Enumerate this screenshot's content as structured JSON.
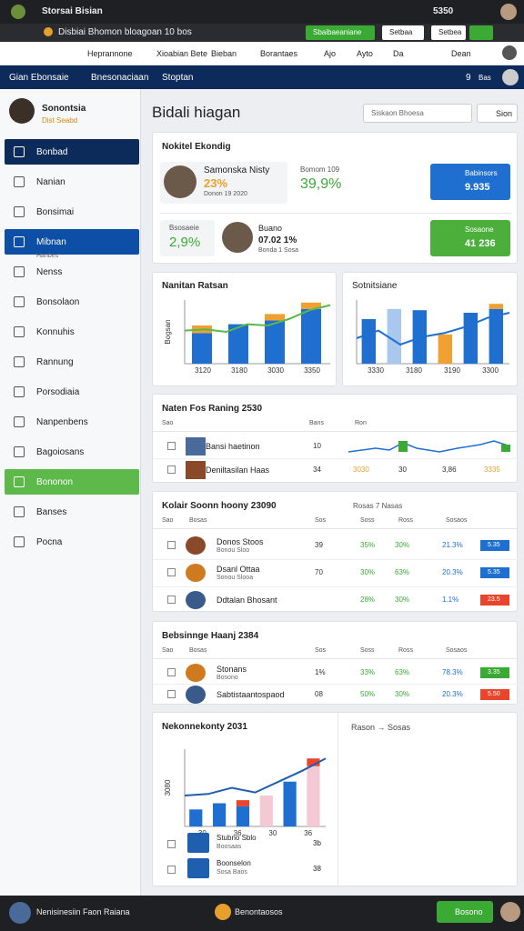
{
  "browser": {
    "tab": "Storsai Bisian",
    "url": "Disbiai Bhomon bloagoan 10 bos",
    "counter": "5350",
    "actions": [
      "Sbaibaeaniane",
      "Setbaa",
      "Setbea"
    ]
  },
  "bookmarks": [
    "Heprannone",
    "Xioabian Bete",
    "Bieban",
    "Borantaes",
    "Ajo",
    "Ayto",
    "Da",
    "Dean"
  ],
  "app": {
    "name": "Gian Ebonsaie",
    "nav": [
      "Bnesonaciaan",
      "Stoptan"
    ],
    "count": "9",
    "user": "Bas"
  },
  "profile": {
    "name": "Sonontsia",
    "role": "Dist Seabd"
  },
  "sidebar": [
    "Bonbad",
    "Nanian",
    "Bonsimai",
    "Mibnan",
    "Nenss",
    "Bonsolaon",
    "Konnuhis",
    "Rannung",
    "Porsodiaia",
    "Nanpenbens",
    "Bagoiosans",
    "Bononon",
    "Banses",
    "Pocna"
  ],
  "sidebar_sub": "Hanbes",
  "page": {
    "title": "Bidali hiagan",
    "search": "Siskaon Bhoesa",
    "search_button": "Sion"
  },
  "summary": {
    "title": "Nokitel Ekondig",
    "person1": {
      "name": "Samonska Nisty",
      "value": "23%",
      "note": "Donon 19 2020"
    },
    "metric1": {
      "label": "Bomom 109",
      "value": "39,9%"
    },
    "tile1": {
      "label": "Babinsors",
      "value": "9.935"
    },
    "metric2": {
      "label": "Bsosaeie",
      "value": "2,9%"
    },
    "person2": {
      "name": "Buano",
      "value": "07.02 1%",
      "note": "Bonda 1 Sosa"
    },
    "tile2": {
      "label": "Sosaone",
      "value": "41 236"
    }
  },
  "charts": [
    {
      "title": "Nanitan Ratsan",
      "ylabel": "Bogsan",
      "xticks": [
        "3120",
        "3180",
        "3030",
        "3350"
      ],
      "ylim": [
        0,
        100
      ],
      "bars": [
        48,
        62,
        68,
        86
      ],
      "bar_colors": [
        "#1e6fd0",
        "#1e6fd0",
        "#1e6fd0",
        "#1e6fd0"
      ],
      "caps": [
        12,
        null,
        10,
        10
      ],
      "cap_color": "#f0a030",
      "line": [
        52,
        54,
        50,
        62,
        60,
        70,
        84,
        92
      ],
      "line_color": "#58b84a"
    },
    {
      "title": "Sotnitsiane",
      "xticks": [
        "3330",
        "3180",
        "3190",
        "3300"
      ],
      "ylim": [
        0,
        100
      ],
      "bars": [
        70,
        86,
        84,
        46,
        80,
        86
      ],
      "bar_colors": [
        "#1e6fd0",
        "#a8c8ee",
        "#1e6fd0",
        "#f0a030",
        "#1e6fd0",
        "#1e6fd0"
      ],
      "caps": [
        null,
        null,
        null,
        null,
        null,
        8
      ],
      "cap_color": "#f0a030",
      "line": [
        40,
        52,
        30,
        42,
        48,
        58,
        72,
        80
      ],
      "line_color": "#1e6fd0"
    },
    {
      "title": "Nekonnekonty 2031",
      "ylabel": "3080",
      "xticks": [
        "30",
        "36",
        "30",
        "36"
      ],
      "ylim": [
        0,
        100
      ],
      "bars": [
        22,
        30,
        26,
        40,
        58,
        78
      ],
      "bar_colors": [
        "#1e6fd0",
        "#1e6fd0",
        "#1e6fd0",
        "#f3c9d3",
        "#1e6fd0",
        "#f3c9d3"
      ],
      "caps": [
        null,
        null,
        8,
        null,
        null,
        10
      ],
      "cap_color": "#e8452c",
      "line": [
        40,
        42,
        50,
        44,
        58,
        72,
        88
      ],
      "line_color": "#1e5fb0"
    }
  ],
  "tables": [
    {
      "title": "Naten Fos Raning 2530",
      "columns": [
        "Sao",
        "Bans",
        "Ron"
      ],
      "rows": [
        {
          "name": "Bansi haetinon",
          "n": "10"
        },
        {
          "name": "Deniltasilan Haas",
          "n": "34",
          "a": "3030",
          "b": "30",
          "c": "3,86",
          "badge": "3335"
        }
      ]
    },
    {
      "title": "Kolair Soonn hoony 23090",
      "filter": "Rosas 7 Nasas",
      "columns": [
        "Sao",
        "Bosas",
        "Sos",
        "Soss",
        "Ross",
        "Sosaos"
      ],
      "rows": [
        {
          "name": "Donos Stoos",
          "sub": "Bonou Sloo",
          "n": "39",
          "a": "35%",
          "b": "30%",
          "c": "21.3%",
          "badge": "5.35",
          "badge_color": "#1e6fd0"
        },
        {
          "name": "Dsanl Ottaa",
          "sub": "Sonou Slooa",
          "n": "70",
          "a": "30%",
          "b": "63%",
          "c": "20.3%",
          "badge": "5.35",
          "badge_color": "#1e6fd0"
        },
        {
          "name": "Ddtalan Bhosant",
          "a": "28%",
          "b": "30%",
          "c": "1.1%",
          "badge": "23.5",
          "badge_color": "#e8452c"
        }
      ]
    },
    {
      "title": "Bebsinnge Haanj 2384",
      "columns": [
        "Sao",
        "Bosas",
        "Sos",
        "Soss",
        "Ross",
        "Sosaos"
      ],
      "rows": [
        {
          "name": "Stonans",
          "sub": "Bosono",
          "n": "1%",
          "a": "33%",
          "b": "63%",
          "c": "78.3%",
          "badge": "3.35",
          "badge_color": "#3aaa35"
        },
        {
          "name": "Sabtistaantospaod",
          "n": "08",
          "a": "50%",
          "b": "30%",
          "c": "20.3%",
          "badge": "5.50",
          "badge_color": "#e8452c"
        }
      ]
    }
  ],
  "bottom": {
    "side_title": "Rason → Sosas",
    "items": [
      {
        "name": "Stubno Sblo",
        "sub": "Boosaas",
        "value": "3b"
      },
      {
        "name": "Boonselon",
        "sub": "Sosa Baos",
        "value": "38"
      }
    ]
  },
  "taskbar": {
    "left": "Nenisinesiin Faon Raiana",
    "center": "Benontaosos",
    "button": "Bosono"
  }
}
